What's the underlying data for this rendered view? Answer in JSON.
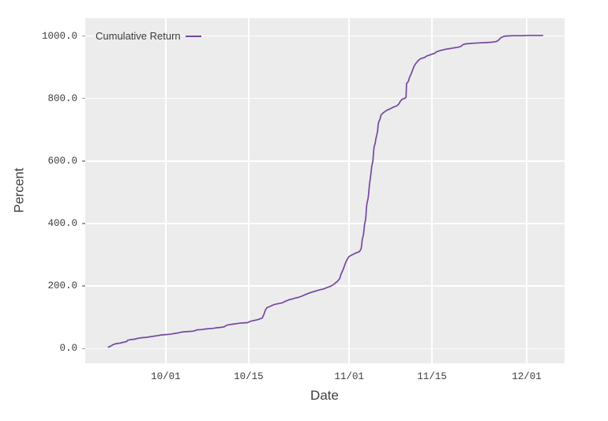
{
  "figure": {
    "background": "#ffffff",
    "text_color": "#3d3d3d",
    "tick_mark_color": "#9a9a9a"
  },
  "chart_data": {
    "type": "line",
    "title": "",
    "xlabel": "Date",
    "ylabel": "Percent",
    "legend_position": "top-left-inside",
    "grid": true,
    "plot_background": "#ececec",
    "gridline_color": "#ffffff",
    "x_unit": "days relative to 10/01",
    "xlim": [
      -13.6,
      67.4
    ],
    "ylim": [
      -47,
      1057
    ],
    "x_ticks": [
      {
        "x": 0,
        "label": "10/01"
      },
      {
        "x": 14,
        "label": "10/15"
      },
      {
        "x": 31,
        "label": "11/01"
      },
      {
        "x": 45,
        "label": "11/15"
      },
      {
        "x": 61,
        "label": "12/01"
      }
    ],
    "y_ticks": [
      {
        "y": 0,
        "label": "0.0"
      },
      {
        "y": 200,
        "label": "200.0"
      },
      {
        "y": 400,
        "label": "400.0"
      },
      {
        "y": 600,
        "label": "600.0"
      },
      {
        "y": 800,
        "label": "800.0"
      },
      {
        "y": 1000,
        "label": "1000.0"
      }
    ],
    "series": [
      {
        "name": "Cumulative Return",
        "color": "#74489e",
        "line_width": 1.7,
        "points": [
          [
            -9.7,
            5
          ],
          [
            -9.3,
            8
          ],
          [
            -8.9,
            13
          ],
          [
            -8.4,
            16
          ],
          [
            -7.7,
            18
          ],
          [
            -7.3,
            20
          ],
          [
            -6.7,
            22
          ],
          [
            -6.4,
            27
          ],
          [
            -5.9,
            29
          ],
          [
            -5.3,
            30
          ],
          [
            -4.7,
            33
          ],
          [
            -4.0,
            35
          ],
          [
            -3.3,
            36
          ],
          [
            -2.7,
            38
          ],
          [
            -2.0,
            40
          ],
          [
            -1.3,
            42
          ],
          [
            -0.7,
            44
          ],
          [
            0,
            45
          ],
          [
            0.7,
            46
          ],
          [
            1.3,
            48
          ],
          [
            2.0,
            50
          ],
          [
            2.7,
            53
          ],
          [
            3.3,
            54
          ],
          [
            4.0,
            55
          ],
          [
            4.7,
            56
          ],
          [
            5.3,
            60
          ],
          [
            6.0,
            61
          ],
          [
            6.7,
            63
          ],
          [
            7.3,
            64
          ],
          [
            8.0,
            65
          ],
          [
            8.7,
            67
          ],
          [
            9.3,
            68
          ],
          [
            9.9,
            70
          ],
          [
            10.3,
            75
          ],
          [
            10.9,
            77
          ],
          [
            11.6,
            79
          ],
          [
            12.3,
            81
          ],
          [
            13.0,
            82
          ],
          [
            13.8,
            83
          ],
          [
            14.4,
            88
          ],
          [
            15.1,
            91
          ],
          [
            15.6,
            93
          ],
          [
            16.0,
            96
          ],
          [
            16.3,
            98
          ],
          [
            16.6,
            110
          ],
          [
            16.8,
            122
          ],
          [
            17.1,
            131
          ],
          [
            17.6,
            135
          ],
          [
            18.3,
            141
          ],
          [
            19.0,
            144
          ],
          [
            19.6,
            146
          ],
          [
            20.3,
            152
          ],
          [
            20.8,
            156
          ],
          [
            21.4,
            159
          ],
          [
            21.9,
            162
          ],
          [
            22.4,
            164
          ],
          [
            23.0,
            168
          ],
          [
            23.5,
            172
          ],
          [
            24.0,
            176
          ],
          [
            24.6,
            180
          ],
          [
            25.1,
            183
          ],
          [
            25.6,
            186
          ],
          [
            26.2,
            189
          ],
          [
            26.7,
            191
          ],
          [
            27.2,
            195
          ],
          [
            27.8,
            199
          ],
          [
            28.2,
            203
          ],
          [
            28.6,
            209
          ],
          [
            29.0,
            215
          ],
          [
            29.4,
            224
          ],
          [
            29.6,
            237
          ],
          [
            30.0,
            254
          ],
          [
            30.4,
            275
          ],
          [
            30.7,
            287
          ],
          [
            31.0,
            295
          ],
          [
            31.5,
            300
          ],
          [
            32.0,
            305
          ],
          [
            32.7,
            310
          ],
          [
            33.0,
            318
          ],
          [
            33.1,
            330
          ],
          [
            33.2,
            348
          ],
          [
            33.4,
            363
          ],
          [
            33.5,
            380
          ],
          [
            33.6,
            398
          ],
          [
            33.8,
            415
          ],
          [
            33.9,
            448
          ],
          [
            34.0,
            464
          ],
          [
            34.2,
            481
          ],
          [
            34.3,
            499
          ],
          [
            34.4,
            520
          ],
          [
            34.6,
            549
          ],
          [
            34.7,
            564
          ],
          [
            34.8,
            582
          ],
          [
            35.0,
            600
          ],
          [
            35.1,
            620
          ],
          [
            35.2,
            645
          ],
          [
            35.4,
            657
          ],
          [
            35.5,
            670
          ],
          [
            35.6,
            678
          ],
          [
            35.8,
            695
          ],
          [
            35.9,
            716
          ],
          [
            36.0,
            726
          ],
          [
            36.2,
            733
          ],
          [
            36.3,
            741
          ],
          [
            36.4,
            748
          ],
          [
            36.7,
            753
          ],
          [
            37.0,
            758
          ],
          [
            37.4,
            763
          ],
          [
            37.8,
            766
          ],
          [
            38.3,
            771
          ],
          [
            38.7,
            774
          ],
          [
            39.1,
            777
          ],
          [
            39.4,
            783
          ],
          [
            39.6,
            790
          ],
          [
            39.9,
            797
          ],
          [
            40.3,
            800
          ],
          [
            40.6,
            803
          ],
          [
            40.7,
            848
          ],
          [
            41.0,
            855
          ],
          [
            41.2,
            868
          ],
          [
            41.5,
            880
          ],
          [
            41.8,
            895
          ],
          [
            42.0,
            905
          ],
          [
            42.3,
            913
          ],
          [
            42.7,
            922
          ],
          [
            43.1,
            928
          ],
          [
            43.7,
            931
          ],
          [
            44.1,
            936
          ],
          [
            44.6,
            939
          ],
          [
            45.0,
            942
          ],
          [
            45.4,
            944
          ],
          [
            45.8,
            950
          ],
          [
            46.3,
            953
          ],
          [
            46.7,
            955
          ],
          [
            47.4,
            958
          ],
          [
            48.1,
            960
          ],
          [
            48.7,
            962
          ],
          [
            49.4,
            964
          ],
          [
            49.9,
            967
          ],
          [
            50.2,
            972
          ],
          [
            50.7,
            975
          ],
          [
            51.4,
            976
          ],
          [
            52.1,
            977
          ],
          [
            53.0,
            978
          ],
          [
            54.1,
            979
          ],
          [
            55.0,
            980
          ],
          [
            55.8,
            982
          ],
          [
            56.2,
            986
          ],
          [
            56.6,
            994
          ],
          [
            57.0,
            998
          ],
          [
            57.4,
            1000
          ],
          [
            58.7,
            1001
          ],
          [
            60.1,
            1001
          ],
          [
            61.4,
            1002
          ],
          [
            62.7,
            1002
          ],
          [
            63.7,
            1002
          ]
        ]
      }
    ]
  }
}
